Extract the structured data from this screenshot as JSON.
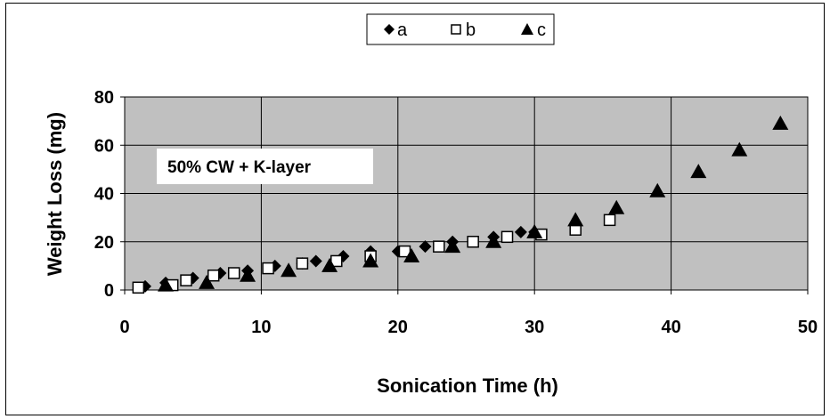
{
  "chart_data": {
    "type": "scatter",
    "xlabel": "Sonication Time (h)",
    "ylabel": "Weight Loss (mg)",
    "xlim": [
      0,
      50
    ],
    "ylim": [
      0,
      80
    ],
    "xticks": [
      "0",
      "10",
      "20",
      "30",
      "40",
      "50"
    ],
    "yticks": [
      "0",
      "20",
      "40",
      "60",
      "80"
    ],
    "grid": true,
    "plot_background": "#c0c0c0",
    "legend_position": "top-center",
    "annotation": "50% CW + K-layer",
    "series": [
      {
        "name": "a",
        "marker": "diamond-filled",
        "x": [
          1.5,
          3,
          5,
          7,
          9,
          11,
          13,
          14,
          16,
          18,
          20,
          22,
          24,
          27,
          29,
          30
        ],
        "y": [
          1.5,
          3,
          5,
          7,
          8,
          10,
          11,
          12,
          14,
          16,
          16,
          18,
          20,
          22,
          24,
          24
        ]
      },
      {
        "name": "b",
        "marker": "square-open",
        "x": [
          1,
          3.5,
          4.5,
          6.5,
          8,
          10.5,
          13,
          15.5,
          18,
          20.5,
          23,
          25.5,
          28,
          30.5,
          33,
          35.5
        ],
        "y": [
          1,
          2,
          4,
          6,
          7,
          9,
          11,
          12,
          14,
          16,
          18,
          20,
          22,
          23,
          25,
          29
        ]
      },
      {
        "name": "c",
        "marker": "triangle-filled",
        "x": [
          3,
          6,
          9,
          12,
          15,
          18,
          21,
          24,
          27,
          30,
          33,
          36,
          39,
          42,
          45,
          48
        ],
        "y": [
          2,
          3,
          6,
          8,
          10,
          12,
          14,
          18,
          20,
          24,
          29,
          34,
          41,
          49,
          58,
          69
        ]
      }
    ]
  }
}
